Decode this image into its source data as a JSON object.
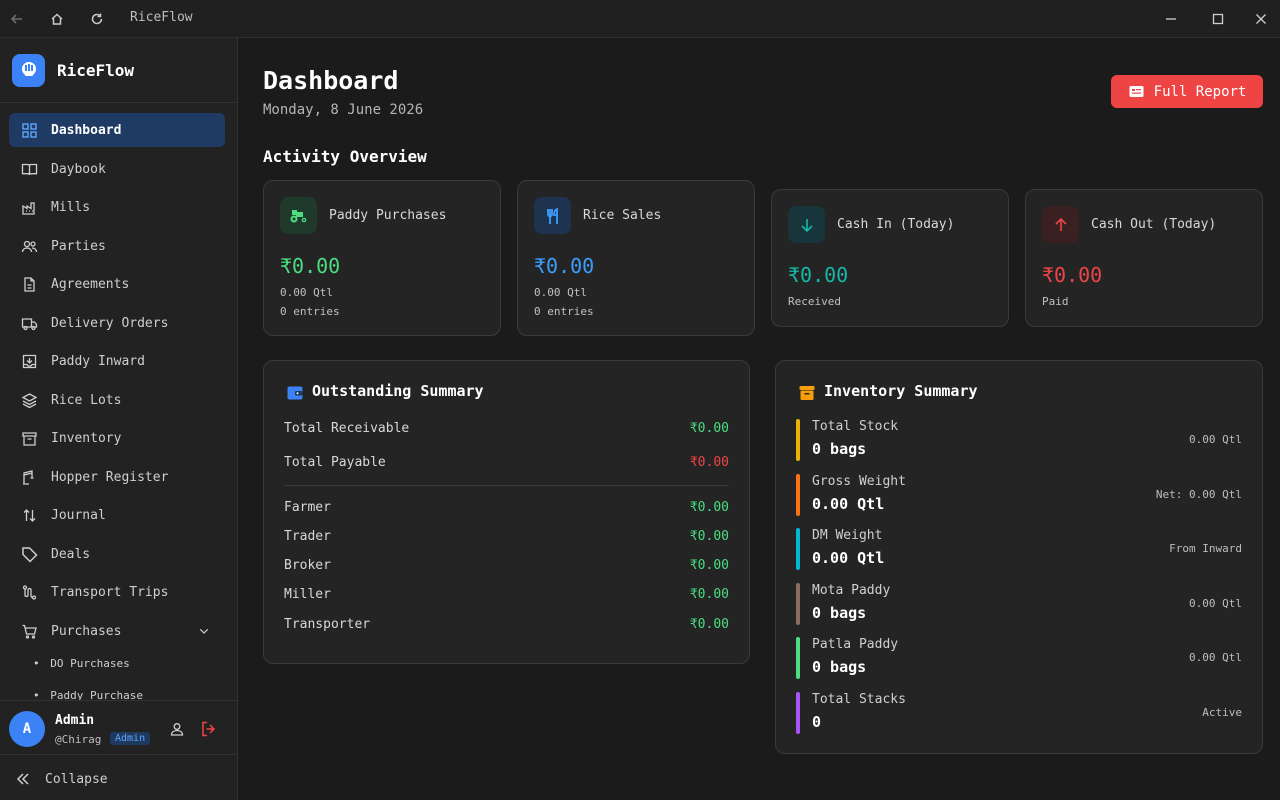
{
  "window": {
    "title": "RiceFlow"
  },
  "brand": {
    "name": "RiceFlow"
  },
  "nav": [
    {
      "label": "Dashboard",
      "icon": "dashboard-icon"
    },
    {
      "label": "Daybook",
      "icon": "book-icon"
    },
    {
      "label": "Mills",
      "icon": "factory-icon"
    },
    {
      "label": "Parties",
      "icon": "users-icon"
    },
    {
      "label": "Agreements",
      "icon": "document-icon"
    },
    {
      "label": "Delivery Orders",
      "icon": "truck-icon"
    },
    {
      "label": "Paddy Inward",
      "icon": "inbox-icon"
    },
    {
      "label": "Rice Lots",
      "icon": "layers-icon"
    },
    {
      "label": "Inventory",
      "icon": "archive-icon"
    },
    {
      "label": "Hopper Register",
      "icon": "crane-icon"
    },
    {
      "label": "Journal",
      "icon": "arrows-icon"
    },
    {
      "label": "Deals",
      "icon": "tag-icon"
    },
    {
      "label": "Transport Trips",
      "icon": "route-icon"
    },
    {
      "label": "Purchases",
      "icon": "cart-icon"
    }
  ],
  "nav_sub": [
    "DO Purchases",
    "Paddy Purchase"
  ],
  "user": {
    "initial": "A",
    "name": "Admin",
    "handle": "@Chirag",
    "role": "Admin"
  },
  "sidebar_footer": {
    "collapse_label": "Collapse"
  },
  "page": {
    "title": "Dashboard",
    "date": "Monday, 8 June 2026",
    "report_button": "Full Report",
    "activity_title": "Activity Overview"
  },
  "activity": [
    {
      "title": "Paddy Purchases",
      "value": "₹0.00",
      "sub1": "0.00 Qtl",
      "sub2": "0 entries",
      "color": "#4ade80"
    },
    {
      "title": "Rice Sales",
      "value": "₹0.00",
      "sub1": "0.00 Qtl",
      "sub2": "0 entries",
      "color": "#3b9eff"
    },
    {
      "title": "Cash In (Today)",
      "value": "₹0.00",
      "sub1": "Received",
      "color": "#14b8a6"
    },
    {
      "title": "Cash Out (Today)",
      "value": "₹0.00",
      "sub1": "Paid",
      "color": "#ef4444"
    }
  ],
  "outstanding": {
    "title": "Outstanding Summary",
    "totals": [
      {
        "label": "Total Receivable",
        "value": "₹0.00"
      },
      {
        "label": "Total Payable",
        "value": "₹0.00"
      }
    ],
    "parties": [
      {
        "label": "Farmer",
        "value": "₹0.00"
      },
      {
        "label": "Trader",
        "value": "₹0.00"
      },
      {
        "label": "Broker",
        "value": "₹0.00"
      },
      {
        "label": "Miller",
        "value": "₹0.00"
      },
      {
        "label": "Transporter",
        "value": "₹0.00"
      }
    ]
  },
  "inventory": {
    "title": "Inventory Summary",
    "items": [
      {
        "label": "Total Stock",
        "value": "0 bags",
        "right": "0.00 Qtl",
        "color": "#eab308"
      },
      {
        "label": "Gross Weight",
        "value": "0.00 Qtl",
        "right": "Net: 0.00 Qtl",
        "color": "#f97316"
      },
      {
        "label": "DM Weight",
        "value": "0.00 Qtl",
        "right": "From Inward",
        "color": "#06b6d4"
      },
      {
        "label": "Mota Paddy",
        "value": "0 bags",
        "right": "0.00 Qtl",
        "color": "#8b6b5c"
      },
      {
        "label": "Patla Paddy",
        "value": "0 bags",
        "right": "0.00 Qtl",
        "color": "#4ade80"
      },
      {
        "label": "Total Stacks",
        "value": "0",
        "right": "Active",
        "color": "#a855f7"
      }
    ]
  }
}
